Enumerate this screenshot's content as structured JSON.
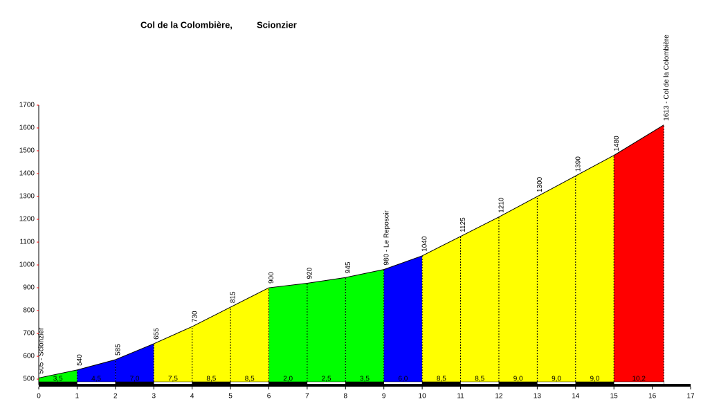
{
  "chart_data": {
    "type": "profile",
    "title": "Col de la Colombière,",
    "subtitle": "Scionzier",
    "x": [
      0,
      1,
      2,
      3,
      4,
      5,
      6,
      7,
      8,
      9,
      10,
      11,
      12,
      13,
      14,
      15,
      16.3
    ],
    "values": [
      505,
      540,
      585,
      655,
      730,
      815,
      900,
      920,
      945,
      980,
      1040,
      1125,
      1210,
      1300,
      1390,
      1480,
      1613
    ],
    "value_labels": [
      "505 - Scionzier",
      "540",
      "585",
      "655",
      "730",
      "815",
      "900",
      "920",
      "945",
      "980 - Le Reposoir",
      "1040",
      "1125",
      "1210",
      "1300",
      "1390",
      "1480",
      "1613 - Col de la Colombière"
    ],
    "segments": {
      "values": [
        3.5,
        4.5,
        7.0,
        7.5,
        8.5,
        8.5,
        2.0,
        2.5,
        3.5,
        6.0,
        8.5,
        8.5,
        9.0,
        9.0,
        9.0,
        10.2
      ],
      "value_labels": [
        "3,5",
        "4,5",
        "7,0",
        "7,5",
        "8,5",
        "8,5",
        "2,0",
        "2,5",
        "3,5",
        "6,0",
        "8,5",
        "8,5",
        "9,0",
        "9,0",
        "9,0",
        "10,2"
      ],
      "colors": [
        "#00ff00",
        "#0000ff",
        "#0000ff",
        "#ffff00",
        "#ffff00",
        "#ffff00",
        "#00ff00",
        "#00ff00",
        "#00ff00",
        "#0000ff",
        "#ffff00",
        "#ffff00",
        "#ffff00",
        "#ffff00",
        "#ffff00",
        "#ff0000"
      ]
    },
    "xlim": [
      0,
      17
    ],
    "xticks": [
      0,
      1,
      2,
      3,
      4,
      5,
      6,
      7,
      8,
      9,
      10,
      11,
      12,
      13,
      14,
      15,
      16,
      17
    ],
    "ylim": [
      476,
      1700
    ],
    "yticks": [
      500,
      600,
      700,
      800,
      900,
      1000,
      1100,
      1200,
      1300,
      1400,
      1500,
      1600,
      1700
    ]
  }
}
